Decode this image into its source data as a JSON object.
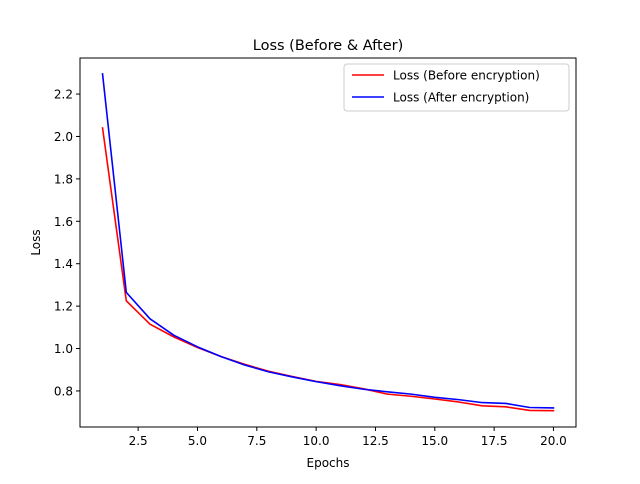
{
  "chart_data": {
    "type": "line",
    "title": "Loss (Before & After)",
    "xlabel": "Epochs",
    "ylabel": "Loss",
    "xlim": [
      0.05,
      20.95
    ],
    "ylim": [
      0.63,
      2.37
    ],
    "grid": false,
    "legend_position": "top-right",
    "x": [
      1,
      2,
      3,
      4,
      5,
      6,
      7,
      8,
      9,
      10,
      11,
      12,
      13,
      14,
      15,
      16,
      17,
      18,
      19,
      20
    ],
    "xticks": [
      2.5,
      5.0,
      7.5,
      10.0,
      12.5,
      15.0,
      17.5,
      20.0
    ],
    "xtick_labels": [
      "2.5",
      "5.0",
      "7.5",
      "10.0",
      "12.5",
      "15.0",
      "17.5",
      "20.0"
    ],
    "yticks": [
      0.8,
      1.0,
      1.2,
      1.4,
      1.6,
      1.8,
      2.0,
      2.2
    ],
    "ytick_labels": [
      "0.8",
      "1.0",
      "1.2",
      "1.4",
      "1.6",
      "1.8",
      "2.0",
      "2.2"
    ],
    "series": [
      {
        "name": "Loss (Before encryption)",
        "color": "#ff0000",
        "values": [
          2.04,
          1.225,
          1.115,
          1.055,
          1.005,
          0.962,
          0.925,
          0.893,
          0.868,
          0.845,
          0.83,
          0.81,
          0.785,
          0.775,
          0.762,
          0.748,
          0.73,
          0.725,
          0.708,
          0.707
        ]
      },
      {
        "name": "Loss (After encryption)",
        "color": "#0000ff",
        "values": [
          2.295,
          1.265,
          1.14,
          1.063,
          1.008,
          0.962,
          0.922,
          0.89,
          0.866,
          0.844,
          0.825,
          0.808,
          0.796,
          0.785,
          0.77,
          0.759,
          0.745,
          0.741,
          0.722,
          0.72
        ]
      }
    ]
  }
}
